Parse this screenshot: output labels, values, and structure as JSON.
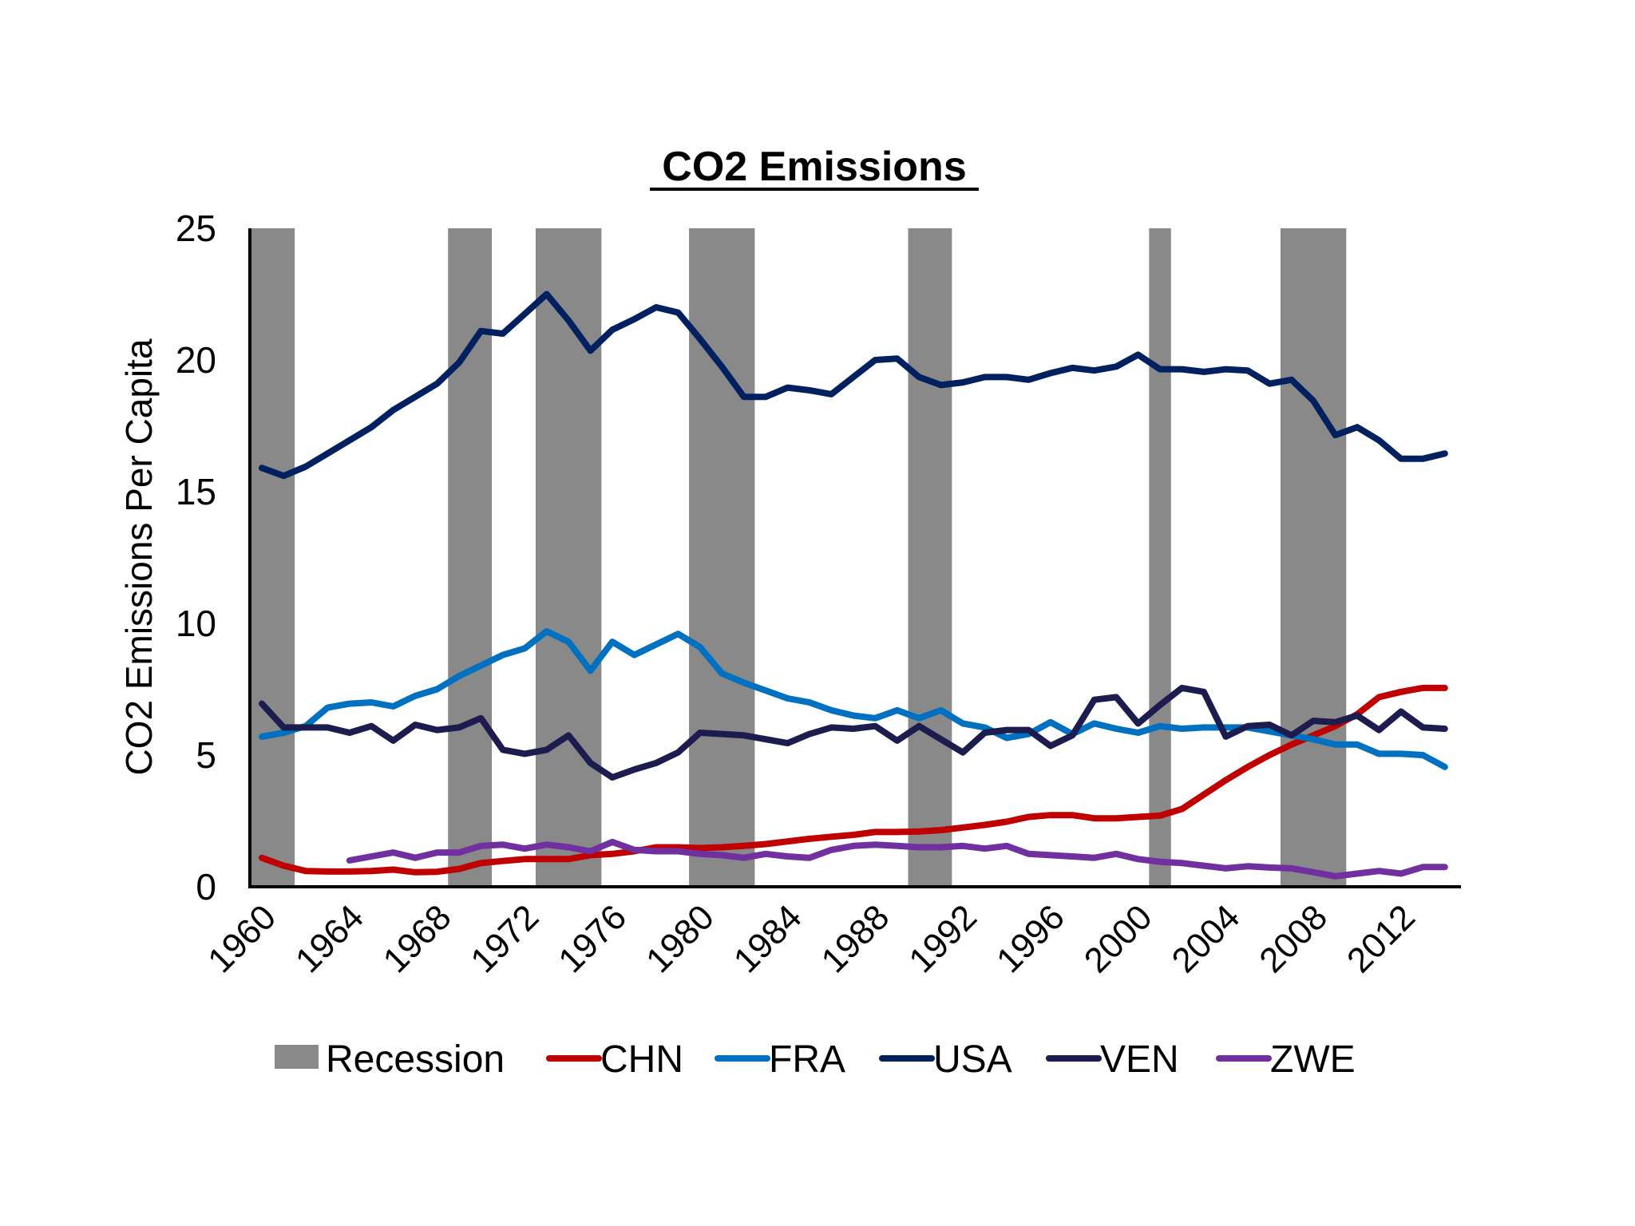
{
  "chart_data": {
    "type": "line",
    "title": "CO2 Emissions",
    "ylabel": "CO2 Emissions Per Capita",
    "xlabel": "",
    "ylim": [
      0,
      25
    ],
    "yticks": [
      "0",
      "5",
      "10",
      "15",
      "20",
      "25"
    ],
    "xlim": [
      1960,
      2014
    ],
    "xticks": [
      "1960",
      "1964",
      "1968",
      "1972",
      "1976",
      "1980",
      "1984",
      "1988",
      "1992",
      "1996",
      "2000",
      "2004",
      "2008",
      "2012"
    ],
    "grid": false,
    "legend_position": "bottom",
    "recession_label": "Recession",
    "recession_color": "#898989",
    "recessions": [
      [
        1960,
        1961
      ],
      [
        1969,
        1970
      ],
      [
        1973,
        1975
      ],
      [
        1980,
        1982
      ],
      [
        1990,
        1991
      ],
      [
        2001,
        2001
      ],
      [
        2007,
        2009
      ]
    ],
    "series": [
      {
        "name": "CHN",
        "color": "#c00000",
        "x": [
          1960,
          1961,
          1962,
          1963,
          1964,
          1965,
          1966,
          1967,
          1968,
          1969,
          1970,
          1971,
          1972,
          1973,
          1974,
          1975,
          1976,
          1977,
          1978,
          1979,
          1980,
          1981,
          1982,
          1983,
          1984,
          1985,
          1986,
          1987,
          1988,
          1989,
          1990,
          1991,
          1992,
          1993,
          1994,
          1995,
          1996,
          1997,
          1998,
          1999,
          2000,
          2001,
          2002,
          2003,
          2004,
          2005,
          2006,
          2007,
          2008,
          2009,
          2010,
          2011,
          2012,
          2013,
          2014
        ],
        "values": [
          1.1,
          0.8,
          0.6,
          0.58,
          0.58,
          0.6,
          0.65,
          0.55,
          0.57,
          0.68,
          0.9,
          0.98,
          1.05,
          1.05,
          1.05,
          1.2,
          1.25,
          1.35,
          1.5,
          1.5,
          1.47,
          1.5,
          1.55,
          1.62,
          1.72,
          1.82,
          1.9,
          1.97,
          2.08,
          2.08,
          2.1,
          2.15,
          2.25,
          2.35,
          2.47,
          2.65,
          2.72,
          2.72,
          2.6,
          2.6,
          2.65,
          2.7,
          2.95,
          3.5,
          4.05,
          4.55,
          5.0,
          5.4,
          5.75,
          6.1,
          6.55,
          7.2,
          7.4,
          7.55,
          7.55
        ]
      },
      {
        "name": "FRA",
        "color": "#0070c0",
        "x": [
          1960,
          1961,
          1962,
          1963,
          1964,
          1965,
          1966,
          1967,
          1968,
          1969,
          1970,
          1971,
          1972,
          1973,
          1974,
          1975,
          1976,
          1977,
          1978,
          1979,
          1980,
          1981,
          1982,
          1983,
          1984,
          1985,
          1986,
          1987,
          1988,
          1989,
          1990,
          1991,
          1992,
          1993,
          1994,
          1995,
          1996,
          1997,
          1998,
          1999,
          2000,
          2001,
          2002,
          2003,
          2004,
          2005,
          2006,
          2007,
          2008,
          2009,
          2010,
          2011,
          2012,
          2013,
          2014
        ],
        "values": [
          5.7,
          5.85,
          6.1,
          6.8,
          6.95,
          7.0,
          6.85,
          7.25,
          7.5,
          8.0,
          8.4,
          8.8,
          9.05,
          9.7,
          9.3,
          8.2,
          9.3,
          8.8,
          9.2,
          9.6,
          9.1,
          8.1,
          7.75,
          7.45,
          7.15,
          7.0,
          6.7,
          6.5,
          6.4,
          6.7,
          6.4,
          6.7,
          6.2,
          6.05,
          5.65,
          5.8,
          6.25,
          5.8,
          6.2,
          6.0,
          5.85,
          6.1,
          6.0,
          6.05,
          6.05,
          6.05,
          5.9,
          5.75,
          5.6,
          5.4,
          5.4,
          5.05,
          5.05,
          5.0,
          4.55
        ]
      },
      {
        "name": "USA",
        "color": "#002060",
        "x": [
          1960,
          1961,
          1962,
          1963,
          1964,
          1965,
          1966,
          1967,
          1968,
          1969,
          1970,
          1971,
          1972,
          1973,
          1974,
          1975,
          1976,
          1977,
          1978,
          1979,
          1980,
          1981,
          1982,
          1983,
          1984,
          1985,
          1986,
          1987,
          1988,
          1989,
          1990,
          1991,
          1992,
          1993,
          1994,
          1995,
          1996,
          1997,
          1998,
          1999,
          2000,
          2001,
          2002,
          2003,
          2004,
          2005,
          2006,
          2007,
          2008,
          2009,
          2010,
          2011,
          2012,
          2013,
          2014
        ],
        "values": [
          15.9,
          15.6,
          15.95,
          16.45,
          16.95,
          17.45,
          18.1,
          18.6,
          19.1,
          19.9,
          21.1,
          21.0,
          21.75,
          22.5,
          21.5,
          20.35,
          21.15,
          21.55,
          22.0,
          21.8,
          20.8,
          19.75,
          18.6,
          18.6,
          18.95,
          18.85,
          18.7,
          19.35,
          20.0,
          20.05,
          19.35,
          19.05,
          19.15,
          19.35,
          19.35,
          19.25,
          19.5,
          19.7,
          19.6,
          19.75,
          20.2,
          19.65,
          19.65,
          19.55,
          19.65,
          19.6,
          19.1,
          19.25,
          18.45,
          17.15,
          17.45,
          16.95,
          16.25,
          16.25,
          16.45
        ]
      },
      {
        "name": "VEN",
        "color": "#1c1c4e",
        "x": [
          1960,
          1961,
          1962,
          1963,
          1964,
          1965,
          1966,
          1967,
          1968,
          1969,
          1970,
          1971,
          1972,
          1973,
          1974,
          1975,
          1976,
          1977,
          1978,
          1979,
          1980,
          1981,
          1982,
          1983,
          1984,
          1985,
          1986,
          1987,
          1988,
          1989,
          1990,
          1991,
          1992,
          1993,
          1994,
          1995,
          1996,
          1997,
          1998,
          1999,
          2000,
          2001,
          2002,
          2003,
          2004,
          2005,
          2006,
          2007,
          2008,
          2009,
          2010,
          2011,
          2012,
          2013,
          2014
        ],
        "values": [
          6.95,
          6.05,
          6.05,
          6.05,
          5.85,
          6.1,
          5.55,
          6.15,
          5.95,
          6.05,
          6.4,
          5.2,
          5.05,
          5.2,
          5.75,
          4.7,
          4.15,
          4.45,
          4.7,
          5.1,
          5.85,
          5.8,
          5.75,
          5.6,
          5.45,
          5.8,
          6.05,
          6.0,
          6.1,
          5.55,
          6.1,
          5.6,
          5.1,
          5.85,
          5.95,
          5.95,
          5.35,
          5.75,
          7.1,
          7.2,
          6.2,
          6.9,
          7.55,
          7.4,
          5.7,
          6.1,
          6.15,
          5.75,
          6.3,
          6.25,
          6.5,
          5.95,
          6.65,
          6.05,
          6.0
        ]
      },
      {
        "name": "ZWE",
        "color": "#7030a0",
        "x": [
          1964,
          1965,
          1966,
          1967,
          1968,
          1969,
          1970,
          1971,
          1972,
          1973,
          1974,
          1975,
          1976,
          1977,
          1978,
          1979,
          1980,
          1981,
          1982,
          1983,
          1984,
          1985,
          1986,
          1987,
          1988,
          1989,
          1990,
          1991,
          1992,
          1993,
          1994,
          1995,
          1996,
          1997,
          1998,
          1999,
          2000,
          2001,
          2002,
          2003,
          2004,
          2005,
          2006,
          2007,
          2008,
          2009,
          2010,
          2011,
          2012,
          2013,
          2014
        ],
        "values": [
          1.0,
          1.15,
          1.3,
          1.1,
          1.3,
          1.3,
          1.55,
          1.6,
          1.45,
          1.6,
          1.5,
          1.35,
          1.7,
          1.4,
          1.35,
          1.35,
          1.25,
          1.2,
          1.1,
          1.25,
          1.15,
          1.1,
          1.4,
          1.55,
          1.6,
          1.55,
          1.5,
          1.5,
          1.55,
          1.45,
          1.55,
          1.25,
          1.2,
          1.15,
          1.1,
          1.25,
          1.05,
          0.95,
          0.9,
          0.8,
          0.7,
          0.78,
          0.73,
          0.7,
          0.55,
          0.4,
          0.5,
          0.6,
          0.5,
          0.75,
          0.75
        ]
      }
    ]
  }
}
